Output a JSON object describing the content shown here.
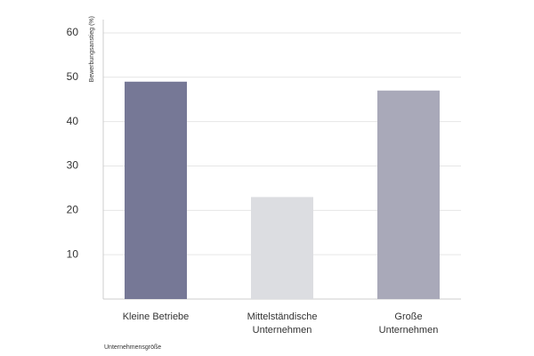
{
  "chart_data": {
    "type": "bar",
    "y_label": "Bewerbungsanstieg (%)",
    "x_label": "Unternehmensgröße",
    "categories": [
      "Kleine Betriebe",
      "Mittelständische Unternehmen",
      "Große Unternehmen"
    ],
    "values": [
      49,
      23,
      47
    ],
    "colors": [
      "#767896",
      "#dcdde1",
      "#a9a9b9"
    ],
    "ylim": [
      0,
      63
    ],
    "yticks": [
      10,
      20,
      30,
      40,
      50,
      60
    ],
    "grid": true
  }
}
